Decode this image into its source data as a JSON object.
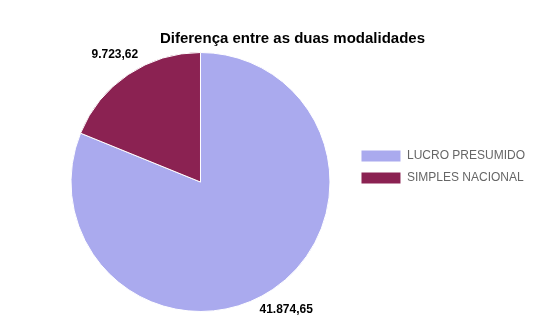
{
  "chart_data": {
    "type": "pie",
    "title": "Diferença entre as duas modalidades",
    "categories": [
      "LUCRO PRESUMIDO",
      "SIMPLES NACIONAL"
    ],
    "values": [
      41874.65,
      9723.62
    ],
    "value_labels": [
      "41.874,65",
      "9.723,62"
    ],
    "colors": [
      "#aaaaee",
      "#8b2252"
    ],
    "data_labels": true,
    "legend": "right"
  }
}
